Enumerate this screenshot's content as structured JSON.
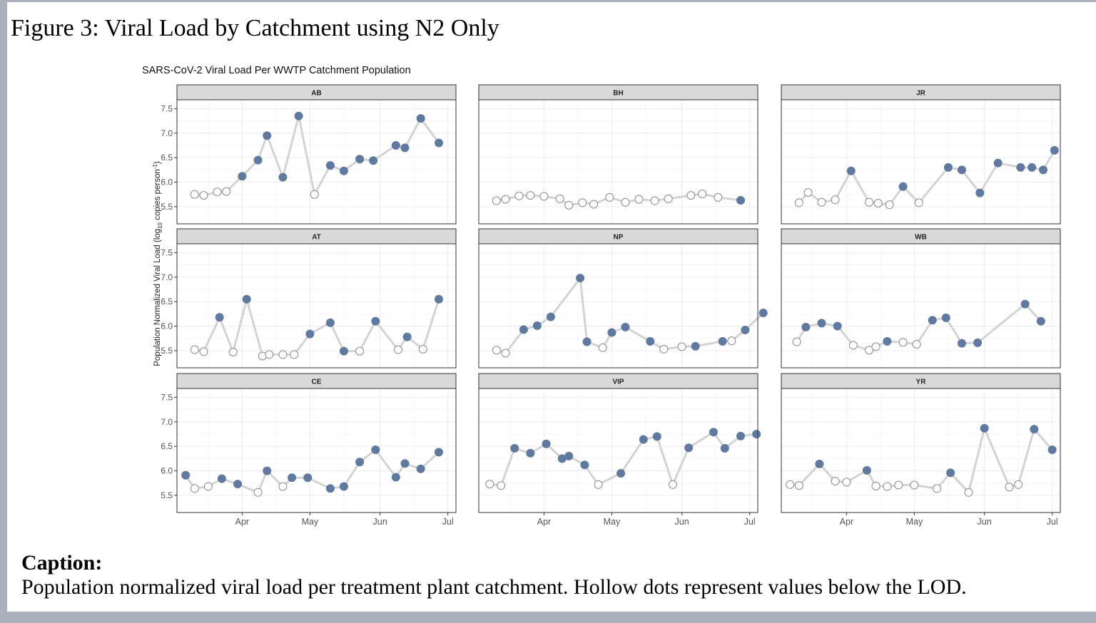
{
  "figure_title": "Figure 3: Viral Load by Catchment using N2 Only",
  "caption": {
    "heading": "Caption:",
    "text": "Population normalized viral load per treatment plant catchment.  Hollow dots represent values below the LOD."
  },
  "colors": {
    "filled_point": "#5f7aa0",
    "hollow_point": "#8a8a8a",
    "line": "#d3d3d3",
    "strip": "#d9d9d9",
    "grid": "#ececec"
  },
  "chart_data": {
    "type": "line",
    "title": "SARS-CoV-2 Viral Load Per WWTP Catchment Population",
    "ylabel_parts": [
      "Population Normalized Viral Load (log",
      "10",
      " copies person",
      "-1",
      ")"
    ],
    "x_axis": "date",
    "xlim": [
      "2021-03-06",
      "2021-07-03"
    ],
    "x_ticks": [
      {
        "date": "2021-04-01",
        "label": "Apr"
      },
      {
        "date": "2021-05-01",
        "label": "May"
      },
      {
        "date": "2021-06-01",
        "label": "Jun"
      },
      {
        "date": "2021-07-01",
        "label": "Jul"
      }
    ],
    "ylim": [
      5.15,
      7.68
    ],
    "y_ticks": [
      5.5,
      6.0,
      6.5,
      7.0,
      7.5
    ],
    "y_tick_labels": [
      "5.5",
      "6.0",
      "6.5",
      "7.0",
      "7.5"
    ],
    "layout": "3x3 facet grid, shared axes",
    "grid": true,
    "legend": "none",
    "point_style": "filled = above LOD, hollow = below LOD",
    "panels": [
      {
        "name": "AB",
        "points": [
          [
            "2021-03-11",
            5.75,
            0
          ],
          [
            "2021-03-15",
            5.73,
            0
          ],
          [
            "2021-03-21",
            5.8,
            0
          ],
          [
            "2021-03-25",
            5.81,
            0
          ],
          [
            "2021-04-01",
            6.12,
            1
          ],
          [
            "2021-04-08",
            6.45,
            1
          ],
          [
            "2021-04-12",
            6.95,
            1
          ],
          [
            "2021-04-19",
            6.1,
            1
          ],
          [
            "2021-04-26",
            7.35,
            1
          ],
          [
            "2021-05-03",
            5.75,
            0
          ],
          [
            "2021-05-10",
            6.34,
            1
          ],
          [
            "2021-05-16",
            6.23,
            1
          ],
          [
            "2021-05-23",
            6.47,
            1
          ],
          [
            "2021-05-29",
            6.44,
            1
          ],
          [
            "2021-06-08",
            6.75,
            1
          ],
          [
            "2021-06-12",
            6.7,
            1
          ],
          [
            "2021-06-19",
            7.3,
            1
          ],
          [
            "2021-06-27",
            6.8,
            1
          ]
        ]
      },
      {
        "name": "BH",
        "points": [
          [
            "2021-03-11",
            5.62,
            0
          ],
          [
            "2021-03-15",
            5.65,
            0
          ],
          [
            "2021-03-21",
            5.72,
            0
          ],
          [
            "2021-03-26",
            5.73,
            0
          ],
          [
            "2021-04-01",
            5.71,
            0
          ],
          [
            "2021-04-08",
            5.66,
            0
          ],
          [
            "2021-04-12",
            5.53,
            0
          ],
          [
            "2021-04-18",
            5.58,
            0
          ],
          [
            "2021-04-23",
            5.55,
            0
          ],
          [
            "2021-04-30",
            5.69,
            0
          ],
          [
            "2021-05-07",
            5.59,
            0
          ],
          [
            "2021-05-13",
            5.65,
            0
          ],
          [
            "2021-05-20",
            5.62,
            0
          ],
          [
            "2021-05-26",
            5.66,
            0
          ],
          [
            "2021-06-05",
            5.73,
            0
          ],
          [
            "2021-06-10",
            5.76,
            0
          ],
          [
            "2021-06-17",
            5.69,
            0
          ],
          [
            "2021-06-27",
            5.63,
            1
          ]
        ]
      },
      {
        "name": "JR",
        "points": [
          [
            "2021-03-11",
            5.58,
            0
          ],
          [
            "2021-03-15",
            5.79,
            0
          ],
          [
            "2021-03-21",
            5.59,
            0
          ],
          [
            "2021-03-27",
            5.64,
            0
          ],
          [
            "2021-04-03",
            6.23,
            1
          ],
          [
            "2021-04-11",
            5.59,
            0
          ],
          [
            "2021-04-15",
            5.57,
            0
          ],
          [
            "2021-04-20",
            5.54,
            0
          ],
          [
            "2021-04-26",
            5.91,
            1
          ],
          [
            "2021-05-03",
            5.58,
            0
          ],
          [
            "2021-05-16",
            6.3,
            1
          ],
          [
            "2021-05-22",
            6.25,
            1
          ],
          [
            "2021-05-30",
            5.78,
            1
          ],
          [
            "2021-06-07",
            6.39,
            1
          ],
          [
            "2021-06-17",
            6.3,
            1
          ],
          [
            "2021-06-22",
            6.3,
            1
          ],
          [
            "2021-06-27",
            6.25,
            1
          ],
          [
            "2021-07-02",
            6.65,
            1
          ]
        ]
      },
      {
        "name": "AT",
        "points": [
          [
            "2021-03-11",
            5.52,
            0
          ],
          [
            "2021-03-15",
            5.48,
            0
          ],
          [
            "2021-03-22",
            6.18,
            1
          ],
          [
            "2021-03-28",
            5.47,
            0
          ],
          [
            "2021-04-03",
            6.55,
            1
          ],
          [
            "2021-04-10",
            5.39,
            0
          ],
          [
            "2021-04-13",
            5.42,
            0
          ],
          [
            "2021-04-19",
            5.42,
            0
          ],
          [
            "2021-04-24",
            5.42,
            0
          ],
          [
            "2021-05-01",
            5.84,
            1
          ],
          [
            "2021-05-10",
            6.07,
            1
          ],
          [
            "2021-05-16",
            5.49,
            1
          ],
          [
            "2021-05-23",
            5.49,
            0
          ],
          [
            "2021-05-30",
            6.1,
            1
          ],
          [
            "2021-06-09",
            5.52,
            0
          ],
          [
            "2021-06-13",
            5.78,
            1
          ],
          [
            "2021-06-20",
            5.53,
            0
          ],
          [
            "2021-06-27",
            6.55,
            1
          ]
        ]
      },
      {
        "name": "NP",
        "points": [
          [
            "2021-03-11",
            5.51,
            0
          ],
          [
            "2021-03-15",
            5.45,
            0
          ],
          [
            "2021-03-23",
            5.93,
            1
          ],
          [
            "2021-03-29",
            6.01,
            1
          ],
          [
            "2021-04-04",
            6.19,
            1
          ],
          [
            "2021-04-17",
            6.98,
            1
          ],
          [
            "2021-04-20",
            5.68,
            1
          ],
          [
            "2021-04-27",
            5.56,
            0
          ],
          [
            "2021-05-01",
            5.87,
            1
          ],
          [
            "2021-05-07",
            5.98,
            1
          ],
          [
            "2021-05-18",
            5.69,
            1
          ],
          [
            "2021-05-24",
            5.53,
            0
          ],
          [
            "2021-06-01",
            5.58,
            0
          ],
          [
            "2021-06-07",
            5.59,
            1
          ],
          [
            "2021-06-19",
            5.69,
            1
          ],
          [
            "2021-06-23",
            5.7,
            0
          ],
          [
            "2021-06-29",
            5.92,
            1
          ],
          [
            "2021-07-07",
            6.27,
            1
          ]
        ]
      },
      {
        "name": "WB",
        "points": [
          [
            "2021-03-10",
            5.68,
            0
          ],
          [
            "2021-03-14",
            5.98,
            1
          ],
          [
            "2021-03-21",
            6.06,
            1
          ],
          [
            "2021-03-28",
            6.0,
            1
          ],
          [
            "2021-04-04",
            5.61,
            0
          ],
          [
            "2021-04-11",
            5.51,
            0
          ],
          [
            "2021-04-14",
            5.58,
            0
          ],
          [
            "2021-04-19",
            5.69,
            1
          ],
          [
            "2021-04-26",
            5.67,
            0
          ],
          [
            "2021-05-02",
            5.63,
            0
          ],
          [
            "2021-05-09",
            6.12,
            1
          ],
          [
            "2021-05-15",
            6.17,
            1
          ],
          [
            "2021-05-22",
            5.65,
            1
          ],
          [
            "2021-05-29",
            5.66,
            1
          ],
          [
            "2021-06-19",
            6.45,
            1
          ],
          [
            "2021-06-26",
            6.1,
            1
          ]
        ]
      },
      {
        "name": "CE",
        "points": [
          [
            "2021-03-07",
            5.91,
            1
          ],
          [
            "2021-03-11",
            5.64,
            0
          ],
          [
            "2021-03-17",
            5.68,
            0
          ],
          [
            "2021-03-23",
            5.84,
            1
          ],
          [
            "2021-03-30",
            5.73,
            1
          ],
          [
            "2021-04-08",
            5.56,
            0
          ],
          [
            "2021-04-12",
            6.0,
            1
          ],
          [
            "2021-04-19",
            5.68,
            0
          ],
          [
            "2021-04-23",
            5.86,
            1
          ],
          [
            "2021-04-30",
            5.86,
            1
          ],
          [
            "2021-05-10",
            5.64,
            1
          ],
          [
            "2021-05-16",
            5.68,
            1
          ],
          [
            "2021-05-23",
            6.18,
            1
          ],
          [
            "2021-05-30",
            6.43,
            1
          ],
          [
            "2021-06-08",
            5.87,
            1
          ],
          [
            "2021-06-12",
            6.15,
            1
          ],
          [
            "2021-06-19",
            6.04,
            1
          ],
          [
            "2021-06-27",
            6.38,
            1
          ]
        ]
      },
      {
        "name": "VIP",
        "points": [
          [
            "2021-03-08",
            5.73,
            0
          ],
          [
            "2021-03-13",
            5.7,
            0
          ],
          [
            "2021-03-19",
            6.46,
            1
          ],
          [
            "2021-03-26",
            6.36,
            1
          ],
          [
            "2021-04-02",
            6.55,
            1
          ],
          [
            "2021-04-09",
            6.25,
            1
          ],
          [
            "2021-04-12",
            6.3,
            1
          ],
          [
            "2021-04-19",
            6.12,
            1
          ],
          [
            "2021-04-25",
            5.72,
            0
          ],
          [
            "2021-05-05",
            5.95,
            1
          ],
          [
            "2021-05-15",
            6.64,
            1
          ],
          [
            "2021-05-21",
            6.7,
            1
          ],
          [
            "2021-05-28",
            5.72,
            0
          ],
          [
            "2021-06-04",
            6.47,
            1
          ],
          [
            "2021-06-15",
            6.79,
            1
          ],
          [
            "2021-06-20",
            6.46,
            1
          ],
          [
            "2021-06-27",
            6.71,
            1
          ],
          [
            "2021-07-04",
            6.75,
            1
          ]
        ]
      },
      {
        "name": "YR",
        "points": [
          [
            "2021-03-07",
            5.72,
            0
          ],
          [
            "2021-03-11",
            5.7,
            0
          ],
          [
            "2021-03-20",
            6.14,
            1
          ],
          [
            "2021-03-27",
            5.79,
            0
          ],
          [
            "2021-04-01",
            5.77,
            0
          ],
          [
            "2021-04-10",
            6.01,
            1
          ],
          [
            "2021-04-14",
            5.69,
            0
          ],
          [
            "2021-04-19",
            5.68,
            0
          ],
          [
            "2021-04-24",
            5.71,
            0
          ],
          [
            "2021-05-01",
            5.71,
            0
          ],
          [
            "2021-05-11",
            5.64,
            0
          ],
          [
            "2021-05-17",
            5.96,
            1
          ],
          [
            "2021-05-25",
            5.56,
            0
          ],
          [
            "2021-06-01",
            6.87,
            1
          ],
          [
            "2021-06-12",
            5.67,
            0
          ],
          [
            "2021-06-16",
            5.72,
            0
          ],
          [
            "2021-06-23",
            6.85,
            1
          ],
          [
            "2021-07-01",
            6.43,
            1
          ]
        ]
      }
    ]
  }
}
